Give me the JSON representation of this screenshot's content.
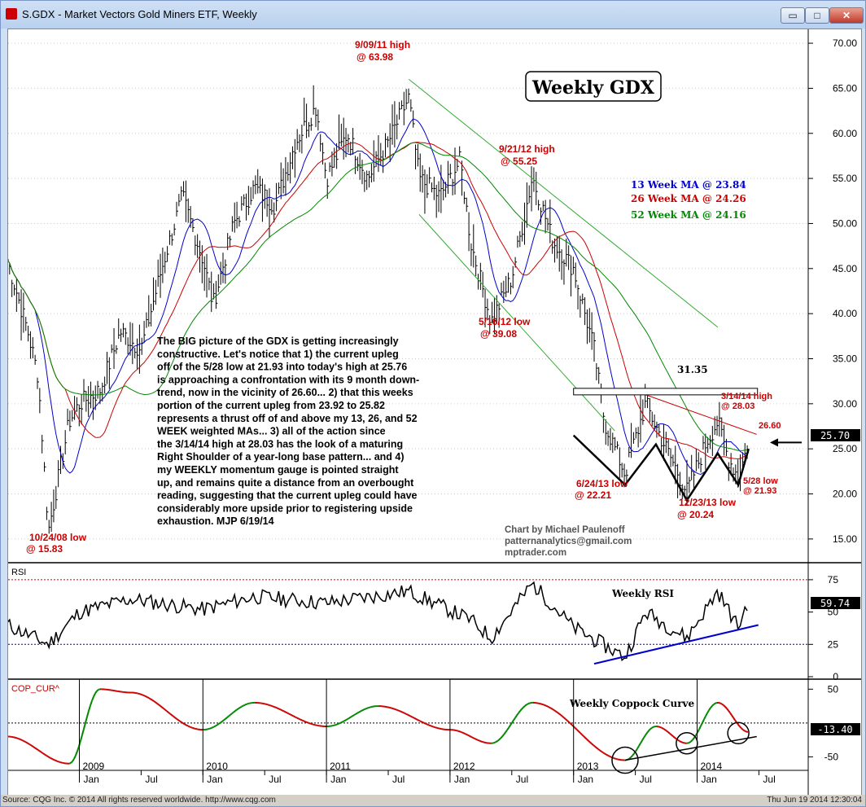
{
  "window": {
    "title": "S.GDX - Market Vectors Gold Miners ETF, Weekly",
    "buttons": {
      "minimize": "▭",
      "maximize": "□",
      "close": "✕"
    }
  },
  "status": {
    "left": "Source: CQG Inc. © 2014 All rights reserved worldwide. http://www.cqg.com",
    "right": "Thu Jun 19 2014 12:30:04"
  },
  "colors": {
    "up": "#000000",
    "ma13": "#0000cc",
    "ma26": "#cc0000",
    "ma52": "#008800",
    "channel": "#33aa33",
    "annotation": "#cc0000",
    "trend": "#0000cc",
    "box": "#000000"
  },
  "chart_data": [
    {
      "type": "ohlc",
      "title": "Weekly GDX",
      "y_ticks": [
        "70.00",
        "65.00",
        "60.00",
        "55.00",
        "50.00",
        "45.00",
        "40.00",
        "35.00",
        "30.00",
        "25.00",
        "20.00",
        "15.00"
      ],
      "ylim": [
        13,
        71
      ],
      "last_price": "25.70",
      "series": [
        {
          "name": "GDX weekly",
          "points": [
            {
              "t": "2008-06",
              "v": 46.0
            },
            {
              "t": "2008-08",
              "v": 38.0
            },
            {
              "t": "2008-09",
              "v": 33.0
            },
            {
              "t": "2008-10",
              "v": 15.83
            },
            {
              "t": "2008-11",
              "v": 22.0
            },
            {
              "t": "2008-12",
              "v": 28.0
            },
            {
              "t": "2009-01",
              "v": 30.0
            },
            {
              "t": "2009-03",
              "v": 31.5
            },
            {
              "t": "2009-05",
              "v": 38.0
            },
            {
              "t": "2009-07",
              "v": 36.0
            },
            {
              "t": "2009-09",
              "v": 45.0
            },
            {
              "t": "2009-11",
              "v": 53.0
            },
            {
              "t": "2010-01",
              "v": 46.0
            },
            {
              "t": "2010-02",
              "v": 41.0
            },
            {
              "t": "2010-04",
              "v": 50.0
            },
            {
              "t": "2010-06",
              "v": 54.0
            },
            {
              "t": "2010-08",
              "v": 52.0
            },
            {
              "t": "2010-10",
              "v": 59.0
            },
            {
              "t": "2010-12",
              "v": 63.0
            },
            {
              "t": "2011-01",
              "v": 55.0
            },
            {
              "t": "2011-03",
              "v": 60.0
            },
            {
              "t": "2011-05",
              "v": 55.0
            },
            {
              "t": "2011-07",
              "v": 59.0
            },
            {
              "t": "2011-09",
              "v": 63.98
            },
            {
              "t": "2011-10",
              "v": 55.0
            },
            {
              "t": "2011-12",
              "v": 53.0
            },
            {
              "t": "2012-02",
              "v": 57.0
            },
            {
              "t": "2012-03",
              "v": 48.0
            },
            {
              "t": "2012-05",
              "v": 39.08
            },
            {
              "t": "2012-07",
              "v": 44.0
            },
            {
              "t": "2012-09",
              "v": 55.25
            },
            {
              "t": "2012-11",
              "v": 48.0
            },
            {
              "t": "2013-01",
              "v": 45.0
            },
            {
              "t": "2013-03",
              "v": 36.0
            },
            {
              "t": "2013-04",
              "v": 28.0
            },
            {
              "t": "2013-06",
              "v": 22.21
            },
            {
              "t": "2013-08",
              "v": 30.0
            },
            {
              "t": "2013-10",
              "v": 25.0
            },
            {
              "t": "2013-12",
              "v": 20.24
            },
            {
              "t": "2014-02",
              "v": 26.0
            },
            {
              "t": "2014-03",
              "v": 28.03
            },
            {
              "t": "2014-04",
              "v": 24.0
            },
            {
              "t": "2014-05",
              "v": 21.93
            },
            {
              "t": "2014-06",
              "v": 25.7
            }
          ]
        }
      ],
      "moving_averages": [
        {
          "name": "13 Week MA",
          "value": "23.84",
          "label": "13 Week MA @ 23.84"
        },
        {
          "name": "26 Week MA",
          "value": "24.26",
          "label": "26 Week MA @ 24.26"
        },
        {
          "name": "52 Week MA",
          "value": "24.16",
          "label": "52 Week MA @ 24.16"
        }
      ],
      "annotations": {
        "high_2011": [
          "9/09/11 high",
          "@ 63.98"
        ],
        "high_2012": [
          "9/21/12 high",
          "@ 55.25"
        ],
        "low_2012": [
          "5/16/12 low",
          "@ 39.08"
        ],
        "low_2008": [
          "10/24/08 low",
          "@ 15.83"
        ],
        "low_jun13": [
          "6/24/13 low",
          "@ 22.21"
        ],
        "low_dec13": [
          "12/23/13 low",
          "@ 20.24"
        ],
        "high_mar14": [
          "3/14/14 high",
          "@ 28.03"
        ],
        "low_may14": [
          "5/28 low",
          "@ 21.93"
        ],
        "neckline": "31.35",
        "downtrend": "26.60"
      },
      "commentary": [
        "The BIG picture of the GDX is getting increasingly",
        "constructive.  Let's notice that 1) the current upleg",
        "off of the 5/28 low at 21.93 into today's high at 25.76",
        "is approaching a confrontation with its 9 month down-",
        "trend, now in the vicinity of 26.60... 2) that this weeks",
        "portion of the current upleg from 23.92 to 25.82",
        "represents a thrust off of and above my 13, 26, and 52",
        "WEEK weighted MAs... 3) all of the action since",
        "the 3/14/14 high at 28.03 has the look of a maturing",
        "Right Shoulder of a year-long base pattern... and 4)",
        "my WEEKLY momentum gauge is pointed straight",
        "up, and remains quite a distance from an overbought",
        "reading, suggesting that the current upleg could have",
        "considerably more upside prior to registering upside",
        "exhaustion.  MJP  6/19/14"
      ],
      "credit": [
        "Chart by Michael Paulenoff",
        "patternanalytics@gmail.com",
        "mptrader.com"
      ]
    },
    {
      "type": "line",
      "study_label": "RSI",
      "title": "Weekly RSI",
      "y_ticks": [
        "75",
        "50",
        "25",
        "0"
      ],
      "ylim": [
        0,
        85
      ],
      "reference_lines": [
        75,
        25
      ],
      "last_value": "59.74",
      "series": [
        {
          "points": [
            {
              "t": "2008-06",
              "v": 40
            },
            {
              "t": "2008-10",
              "v": 25
            },
            {
              "t": "2009-01",
              "v": 50
            },
            {
              "t": "2009-06",
              "v": 60
            },
            {
              "t": "2010-01",
              "v": 52
            },
            {
              "t": "2010-06",
              "v": 62
            },
            {
              "t": "2011-01",
              "v": 57
            },
            {
              "t": "2011-09",
              "v": 66
            },
            {
              "t": "2012-03",
              "v": 44
            },
            {
              "t": "2012-05",
              "v": 30
            },
            {
              "t": "2012-09",
              "v": 72
            },
            {
              "t": "2013-01",
              "v": 38
            },
            {
              "t": "2013-06",
              "v": 15
            },
            {
              "t": "2013-08",
              "v": 50
            },
            {
              "t": "2013-12",
              "v": 30
            },
            {
              "t": "2014-03",
              "v": 66
            },
            {
              "t": "2014-05",
              "v": 38
            },
            {
              "t": "2014-06",
              "v": 59.74
            }
          ]
        }
      ]
    },
    {
      "type": "line",
      "study_label": "COP_CUR^",
      "title": "Weekly Coppock Curve",
      "y_ticks": [
        "50",
        "-50"
      ],
      "ylim": [
        -70,
        60
      ],
      "last_value": "-13.40",
      "series": [
        {
          "points": [
            {
              "t": "2008-06",
              "v": -20
            },
            {
              "t": "2008-12",
              "v": -60
            },
            {
              "t": "2009-03",
              "v": 50
            },
            {
              "t": "2009-06",
              "v": 45
            },
            {
              "t": "2010-01",
              "v": -10
            },
            {
              "t": "2010-06",
              "v": 30
            },
            {
              "t": "2011-01",
              "v": -5
            },
            {
              "t": "2011-06",
              "v": 25
            },
            {
              "t": "2012-01",
              "v": -10
            },
            {
              "t": "2012-05",
              "v": -30
            },
            {
              "t": "2012-09",
              "v": 30
            },
            {
              "t": "2013-06",
              "v": -55
            },
            {
              "t": "2013-09",
              "v": -5
            },
            {
              "t": "2013-12",
              "v": -30
            },
            {
              "t": "2014-03",
              "v": 30
            },
            {
              "t": "2014-06",
              "v": -13.4
            }
          ]
        }
      ]
    }
  ],
  "x_axis": {
    "years": [
      "2009",
      "2010",
      "2011",
      "2012",
      "2013",
      "2014"
    ],
    "months": [
      "Jan",
      "Jul",
      "Jan",
      "Jul",
      "Jan",
      "Jul",
      "Jan",
      "Jul",
      "Jan",
      "Jul",
      "Jan",
      "Jul"
    ]
  }
}
